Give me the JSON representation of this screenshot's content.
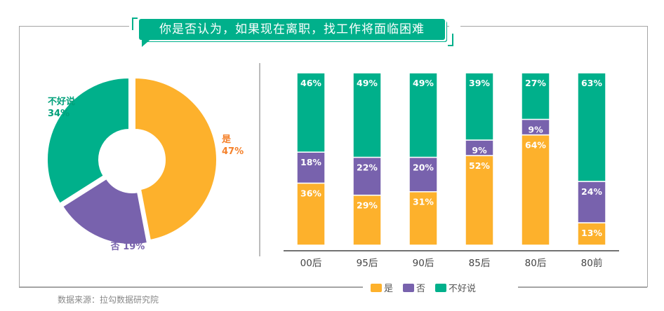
{
  "title": "你是否认为，如果现在离职，找工作将面临困难",
  "source": "数据来源：拉勾数据研究院",
  "colors": {
    "yes": "#fdb12c",
    "no": "#7862ad",
    "unsure": "#00b08b"
  },
  "legend": [
    "是",
    "否",
    "不好说"
  ],
  "chart_data": [
    {
      "type": "pie",
      "donut": true,
      "slices": [
        {
          "label": "是",
          "value": 47,
          "text": "47%"
        },
        {
          "label": "否",
          "value": 19,
          "text": "19%"
        },
        {
          "label": "不好说",
          "value": 34,
          "text": "34%"
        }
      ]
    },
    {
      "type": "bar",
      "stacked": true,
      "categories": [
        "00后",
        "95后",
        "90后",
        "85后",
        "80后",
        "80前"
      ],
      "series": [
        {
          "name": "是",
          "values": [
            36,
            29,
            31,
            52,
            64,
            13
          ]
        },
        {
          "name": "否",
          "values": [
            18,
            22,
            20,
            9,
            9,
            24
          ]
        },
        {
          "name": "不好说",
          "values": [
            46,
            49,
            49,
            39,
            27,
            63
          ]
        }
      ],
      "ylim": [
        0,
        100
      ]
    }
  ]
}
